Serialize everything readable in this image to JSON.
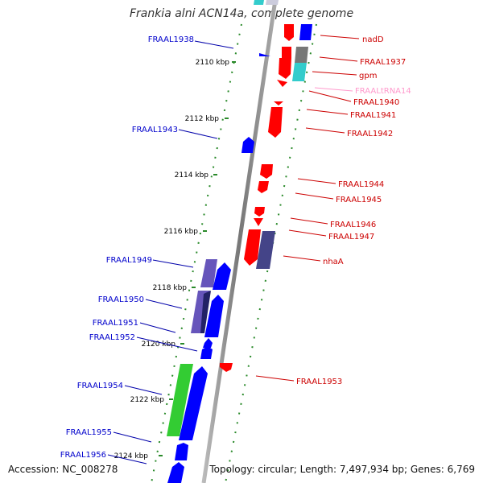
{
  "title": "Frankia alni ACN14a, complete genome",
  "footer": {
    "accession": "Accession: NC_008278",
    "summary": "Topology: circular; Length: 7,497,934 bp; Genes: 6,769"
  },
  "ticks": [
    "2110 kbp",
    "2112 kbp",
    "2114 kbp",
    "2116 kbp",
    "2118 kbp",
    "2120 kbp",
    "2122 kbp",
    "2124 kbp"
  ],
  "genes_left": [
    {
      "name": "FRAAL1938",
      "color": "#0000ff"
    },
    {
      "name": "FRAAL1943",
      "color": "#0000ff"
    },
    {
      "name": "FRAAL1949",
      "color": "#0000ff"
    },
    {
      "name": "FRAAL1950",
      "color": "#0000ff"
    },
    {
      "name": "FRAAL1951",
      "color": "#0000ff"
    },
    {
      "name": "FRAAL1952",
      "color": "#0000ff"
    },
    {
      "name": "FRAAL1954",
      "color": "#0000ff"
    },
    {
      "name": "FRAAL1955",
      "color": "#0000ff"
    },
    {
      "name": "FRAAL1956",
      "color": "#0000ff"
    }
  ],
  "genes_right": [
    {
      "name": "nadD",
      "color": "#ff0000"
    },
    {
      "name": "FRAAL1937",
      "color": "#ff0000"
    },
    {
      "name": "gpm",
      "color": "#ff0000"
    },
    {
      "name": "FRAALtRNA14",
      "color": "#ff99cc"
    },
    {
      "name": "FRAAL1940",
      "color": "#ff0000"
    },
    {
      "name": "FRAAL1941",
      "color": "#ff0000"
    },
    {
      "name": "FRAAL1942",
      "color": "#ff0000"
    },
    {
      "name": "FRAAL1944",
      "color": "#ff0000"
    },
    {
      "name": "FRAAL1945",
      "color": "#ff0000"
    },
    {
      "name": "FRAAL1946",
      "color": "#ff0000"
    },
    {
      "name": "FRAAL1947",
      "color": "#ff0000"
    },
    {
      "name": "nhaA",
      "color": "#ff0000"
    },
    {
      "name": "FRAAL1953",
      "color": "#ff0000"
    }
  ],
  "colors": {
    "backbone": "#888888",
    "forward": "#0000ff",
    "reverse": "#ff0000",
    "purple": "#6655bb",
    "cyan": "#33cccc",
    "green": "#33cc33",
    "gray": "#777777",
    "tick": "#2a8a2a"
  }
}
